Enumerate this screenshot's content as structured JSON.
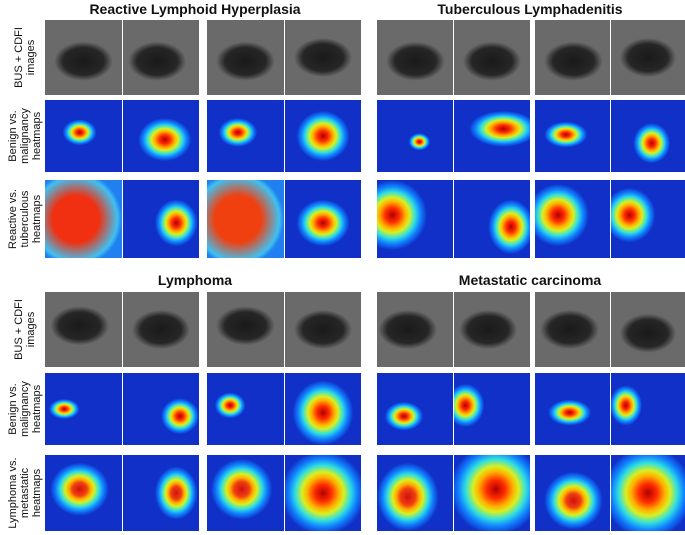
{
  "top": {
    "titles": [
      "Reactive Lymphoid Hyperplasia",
      "Tuberculous Lymphadenitis"
    ],
    "row_labels": [
      [
        "BUS + CDFI",
        "images"
      ],
      [
        "Benign vs.",
        "malignancy",
        "heatmaps"
      ],
      [
        "Reactive vs.",
        "tuberculous",
        "heatmaps"
      ]
    ]
  },
  "bottom": {
    "titles": [
      "Lymphoma",
      "Metastatic carcinoma"
    ],
    "row_labels": [
      [
        "BUS + CDFI",
        "images"
      ],
      [
        "Benign vs.",
        "malignancy",
        "heatmaps"
      ],
      [
        "Lymphoma vs.",
        "metastatic",
        "heatmaps"
      ]
    ]
  }
}
